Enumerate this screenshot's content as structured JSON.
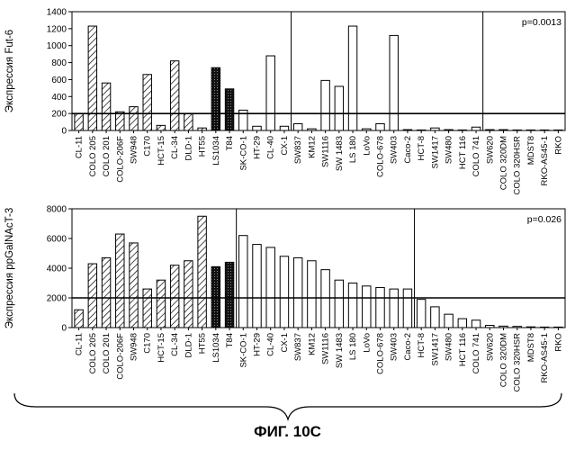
{
  "figure_caption": "ФИГ. 10С",
  "colors": {
    "hatched": "#000000",
    "dark": "#111111",
    "outline": "#000000",
    "fill_open": "#ffffff"
  },
  "chart_data": [
    {
      "type": "bar",
      "ylabel": "Экспрессия Fut-6",
      "annotation": "p=0.0013",
      "ylim": [
        0,
        1400
      ],
      "yticks": [
        0,
        200,
        400,
        600,
        800,
        1000,
        1200,
        1400
      ],
      "threshold": 200,
      "group_dividers_after": [
        15,
        29
      ],
      "categories": [
        "CL-11",
        "COLO 205",
        "COLO 201",
        "COLO-206F",
        "SW948",
        "C170",
        "HCT-15",
        "CL-34",
        "DLD-1",
        "HT55",
        "LS1034",
        "T84",
        "SK-CO-1",
        "HT-29",
        "CL-40",
        "CX-1",
        "SW837",
        "KM12",
        "SW1116",
        "SW 1483",
        "LS 180",
        "LoVo",
        "COLO-678",
        "SW403",
        "Caco-2",
        "HCT-8",
        "SW1417",
        "SW480",
        "HCT 116",
        "COLO 741",
        "SW620",
        "COLO 320DM",
        "COLO 320HSR",
        "MDST8",
        "RKO-AS45-1",
        "RKO"
      ],
      "values": [
        200,
        1230,
        560,
        220,
        280,
        660,
        60,
        820,
        200,
        30,
        740,
        490,
        240,
        50,
        880,
        50,
        80,
        20,
        590,
        520,
        1230,
        20,
        80,
        1120,
        10,
        5,
        30,
        10,
        5,
        40,
        10,
        10,
        5,
        5,
        5,
        5
      ],
      "styles": [
        "hatched",
        "hatched",
        "hatched",
        "hatched",
        "hatched",
        "hatched",
        "hatched",
        "hatched",
        "hatched",
        "hatched",
        "dark",
        "dark",
        "open",
        "open",
        "open",
        "open",
        "open",
        "open",
        "open",
        "open",
        "open",
        "open",
        "open",
        "open",
        "open",
        "open",
        "open",
        "open",
        "open",
        "open",
        "open",
        "open",
        "open",
        "open",
        "open",
        "open"
      ]
    },
    {
      "type": "bar",
      "ylabel": "Экспрессия ppGalNAcT-3",
      "annotation": "p=0.026",
      "ylim": [
        0,
        8000
      ],
      "yticks": [
        0,
        2000,
        4000,
        6000,
        8000
      ],
      "threshold": 2000,
      "group_dividers_after": [
        11,
        24
      ],
      "categories": [
        "CL-11",
        "COLO 205",
        "COLO 201",
        "COLO-206F",
        "SW948",
        "C170",
        "HCT-15",
        "CL-34",
        "DLD-1",
        "HT55",
        "LS1034",
        "T84",
        "SK-CO-1",
        "HT-29",
        "CL-40",
        "CX-1",
        "SW837",
        "KM12",
        "SW1116",
        "SW 1483",
        "LS 180",
        "LoVo",
        "COLO-678",
        "SW403",
        "Caco-2",
        "HCT-8",
        "SW1417",
        "SW480",
        "HCT 116",
        "COLO 741",
        "SW620",
        "COLO 320DM",
        "COLO 320HSR",
        "MDST8",
        "RKO-AS45-1",
        "RKO"
      ],
      "values": [
        1200,
        4300,
        4700,
        6300,
        5700,
        2600,
        3200,
        4200,
        4500,
        7500,
        4100,
        4400,
        6200,
        5600,
        5400,
        4800,
        4700,
        4500,
        3900,
        3200,
        3000,
        2800,
        2700,
        2600,
        2600,
        1900,
        1400,
        900,
        600,
        500,
        150,
        100,
        80,
        50,
        30,
        20
      ],
      "styles": [
        "hatched",
        "hatched",
        "hatched",
        "hatched",
        "hatched",
        "hatched",
        "hatched",
        "hatched",
        "hatched",
        "hatched",
        "dark",
        "dark",
        "open",
        "open",
        "open",
        "open",
        "open",
        "open",
        "open",
        "open",
        "open",
        "open",
        "open",
        "open",
        "open",
        "open",
        "open",
        "open",
        "open",
        "open",
        "open",
        "open",
        "open",
        "open",
        "open",
        "open"
      ]
    }
  ]
}
